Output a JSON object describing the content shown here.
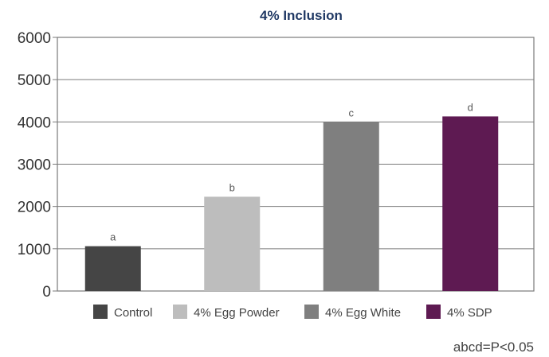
{
  "chart_data": {
    "type": "bar",
    "title": "4% Inclusion",
    "categories": [
      "Control",
      "4% Egg Powder",
      "4% Egg White",
      "4% SDP"
    ],
    "values": [
      1060,
      2230,
      4000,
      4130
    ],
    "data_labels": [
      "a",
      "b",
      "c",
      "d"
    ],
    "colors": [
      "#454545",
      "#bdbdbd",
      "#7f7f7f",
      "#5e1a52"
    ],
    "ylim": [
      0,
      6000
    ],
    "yticks": [
      0,
      1000,
      2000,
      3000,
      4000,
      5000,
      6000
    ],
    "xlabel": "",
    "ylabel": "",
    "grid": true,
    "legend_position": "bottom",
    "footnote": "abcd=P<0.05"
  }
}
